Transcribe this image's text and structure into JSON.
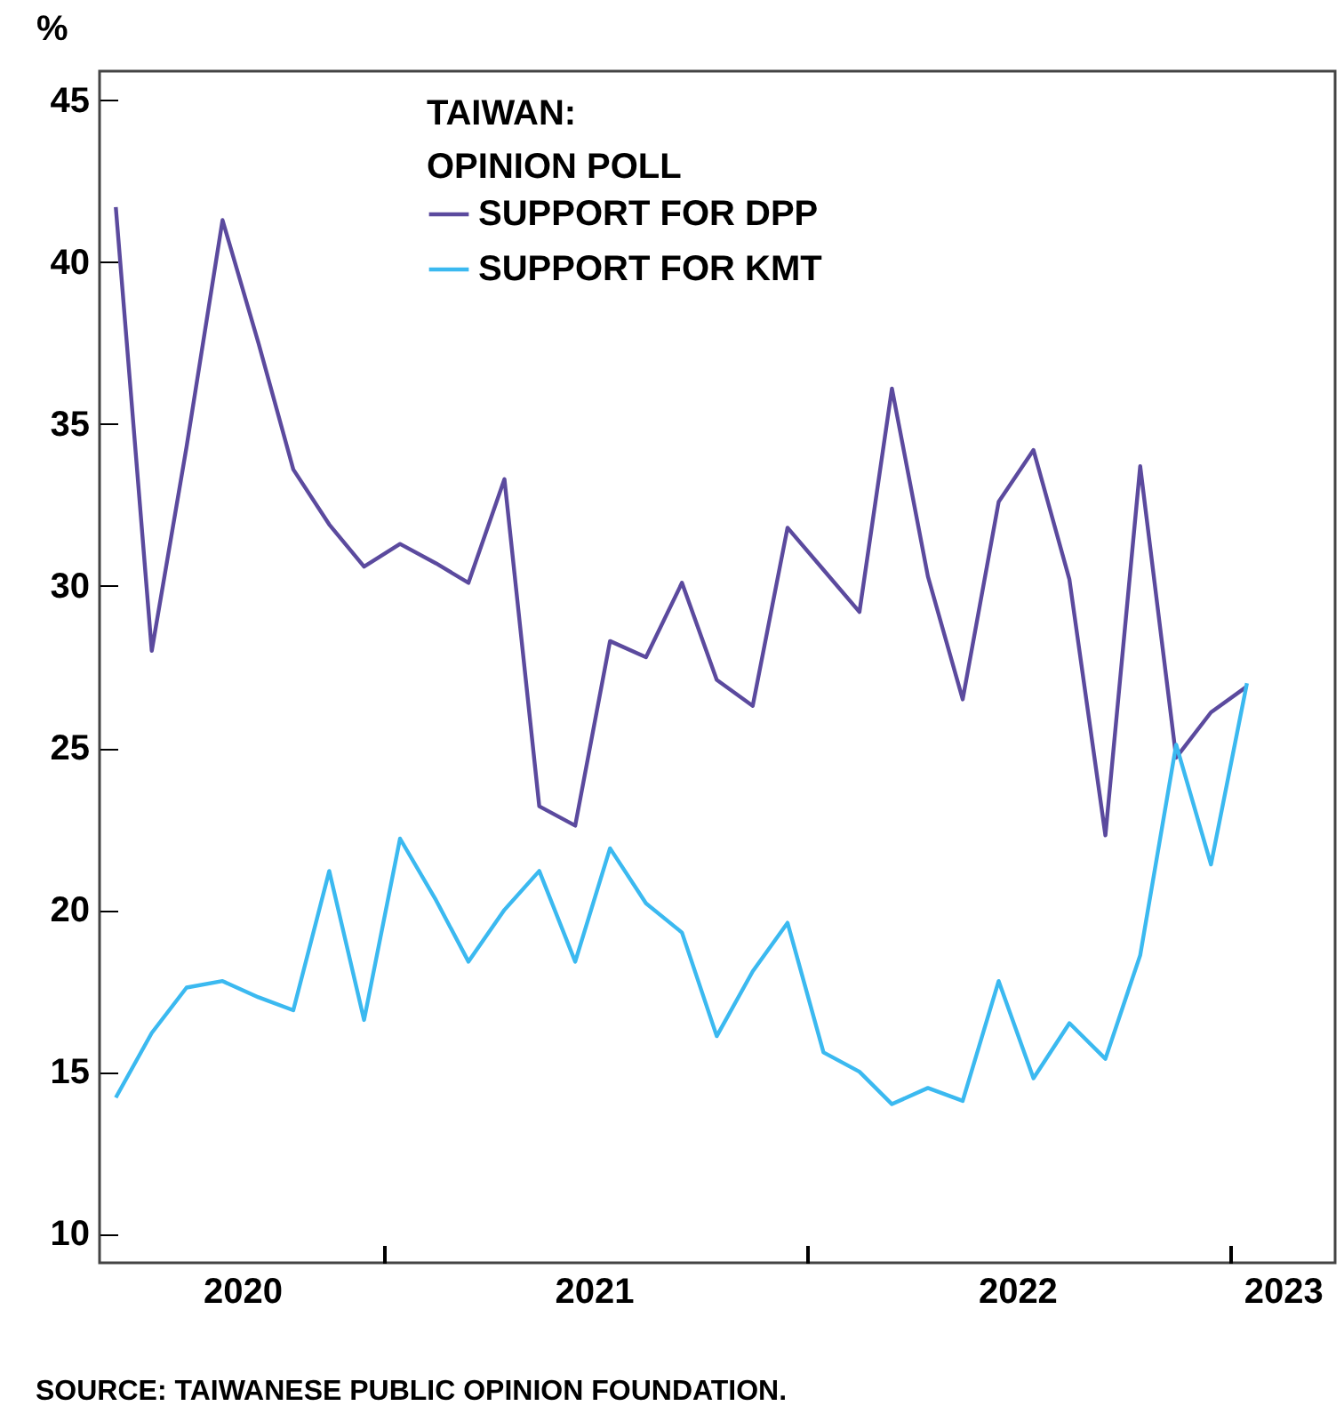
{
  "chart_data": {
    "type": "line",
    "legend_title": "TAIWAN:\nOPINION POLL",
    "ylabel": "%",
    "annotations": [
      "SOURCE: TAIWANESE PUBLIC OPINION FOUNDATION."
    ],
    "x": [
      "2020-05-15",
      "2020-06-15",
      "2020-07-15",
      "2020-08-15",
      "2020-09-15",
      "2020-10-15",
      "2020-11-15",
      "2020-12-15",
      "2021-01-15",
      "2021-02-15",
      "2021-03-15",
      "2021-04-15",
      "2021-05-15",
      "2021-06-15",
      "2021-07-15",
      "2021-08-15",
      "2021-09-15",
      "2021-10-15",
      "2021-11-15",
      "2021-12-15",
      "2022-01-15",
      "2022-02-15",
      "2022-03-15",
      "2022-04-15",
      "2022-05-15",
      "2022-06-15",
      "2022-07-15",
      "2022-08-15",
      "2022-09-15",
      "2022-10-15",
      "2022-11-15",
      "2022-12-15",
      "2023-01-15"
    ],
    "series": [
      {
        "name": "SUPPORT FOR DPP",
        "color": "#5b4a9e",
        "values": [
          41.7,
          28.0,
          34.3,
          41.3,
          37.5,
          33.6,
          31.9,
          30.6,
          31.3,
          30.7,
          30.1,
          33.3,
          23.2,
          22.6,
          28.3,
          27.8,
          30.1,
          27.1,
          26.3,
          31.8,
          30.5,
          29.2,
          36.1,
          30.3,
          26.5,
          32.6,
          34.2,
          30.2,
          22.3,
          33.7,
          24.7,
          26.1,
          26.9
        ]
      },
      {
        "name": "SUPPORT FOR KMT",
        "color": "#3bb9f0",
        "values": [
          14.2,
          16.2,
          17.6,
          17.8,
          17.3,
          16.9,
          21.2,
          16.6,
          22.2,
          20.3,
          18.4,
          20.0,
          21.2,
          18.4,
          21.9,
          20.2,
          19.3,
          16.1,
          18.1,
          19.6,
          15.6,
          15.0,
          14.0,
          14.5,
          14.1,
          17.8,
          14.8,
          16.5,
          15.4,
          18.6,
          25.1,
          21.4,
          27.0
        ]
      }
    ],
    "xlim": [
      "2020-05-01",
      "2023-04-01"
    ],
    "xticks": [
      {
        "value": "2020-09-01",
        "label": "2020"
      },
      {
        "value": "2021-01-01",
        "label": null
      },
      {
        "value": "2021-07-01",
        "label": "2021"
      },
      {
        "value": "2022-01-01",
        "label": null
      },
      {
        "value": "2022-07-01",
        "label": "2022"
      },
      {
        "value": "2023-01-01",
        "label": null
      },
      {
        "value": "2023-02-15",
        "label": "2023"
      }
    ],
    "ylim": [
      9.1,
      45.9
    ],
    "yticks": [
      10,
      15,
      20,
      25,
      30,
      35,
      40,
      45
    ],
    "legend": "top left",
    "marker": "none",
    "line_style": "solid"
  }
}
